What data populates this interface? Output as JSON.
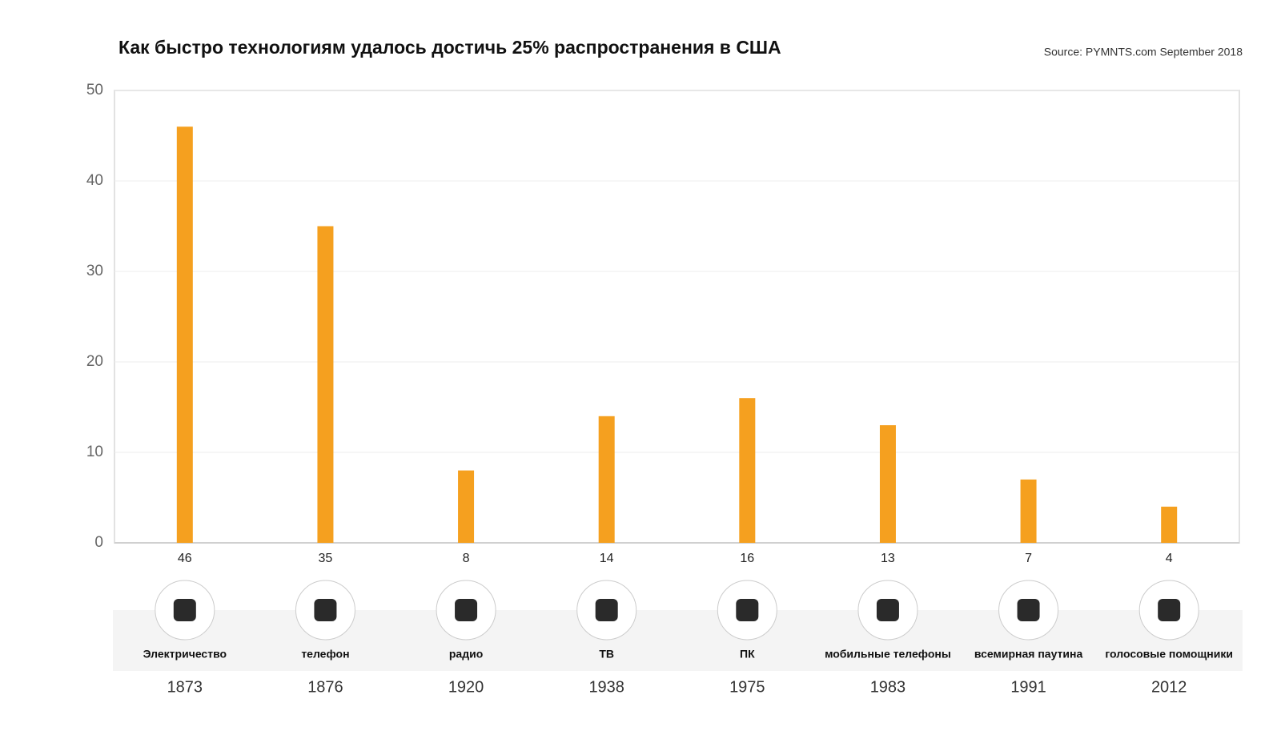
{
  "chart_data": {
    "type": "bar",
    "title": "Как быстро технологиям удалось достичь 25% распространения в США",
    "source": "Source: PYMNTS.com September 2018",
    "categories": [
      "Электричество",
      "телефон",
      "радио",
      "ТВ",
      "ПК",
      "мобильные телефоны",
      "всемирная паутина",
      "голосовые помощники"
    ],
    "years": [
      "1873",
      "1876",
      "1920",
      "1938",
      "1975",
      "1983",
      "1991",
      "2012"
    ],
    "values": [
      46,
      35,
      8,
      14,
      16,
      13,
      7,
      4
    ],
    "color": "#f5a01f",
    "ylim": [
      0,
      50
    ],
    "yticks": [
      0,
      10,
      20,
      30,
      40,
      50
    ],
    "grid": true
  }
}
